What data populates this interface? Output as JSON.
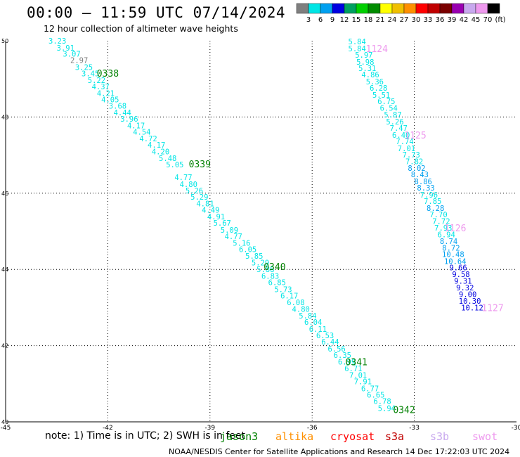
{
  "title": "00:00 – 11:59 UTC 07/14/2024",
  "subtitle": "12 hour collection of altimeter wave heights",
  "colorbar": {
    "unit": "(ft)",
    "bins": [
      {
        "label": "3",
        "color": "#7f7f7f"
      },
      {
        "label": "6",
        "color": "#00e5e5"
      },
      {
        "label": "9",
        "color": "#00a0f0"
      },
      {
        "label": "12",
        "color": "#0000e0"
      },
      {
        "label": "15",
        "color": "#00a060"
      },
      {
        "label": "18",
        "color": "#00d000"
      },
      {
        "label": "21",
        "color": "#008c00"
      },
      {
        "label": "24",
        "color": "#ffff00"
      },
      {
        "label": "27",
        "color": "#f0c000"
      },
      {
        "label": "30",
        "color": "#ff9000"
      },
      {
        "label": "33",
        "color": "#ff0000"
      },
      {
        "label": "36",
        "color": "#c00000"
      },
      {
        "label": "39",
        "color": "#7a0000"
      },
      {
        "label": "42",
        "color": "#9900b0"
      },
      {
        "label": "45",
        "color": "#c8a8ee"
      },
      {
        "label": "70",
        "color": "#ee99ee"
      },
      {
        "label": "",
        "color": "#000000"
      }
    ]
  },
  "footer": {
    "note": "note: 1) Time is in UTC; 2) SWH is in feet",
    "credit": "NOAA/NESDIS Center for Satellite Applications and Research    14 Dec 17:22:03 UTC 2024",
    "satellites": [
      {
        "name": "jason3",
        "color": "#008000"
      },
      {
        "name": "altika",
        "color": "#ff9000"
      },
      {
        "name": "cryosat",
        "color": "#ff0000"
      },
      {
        "name": "s3a",
        "color": "#c00000"
      },
      {
        "name": "s3b",
        "color": "#c8a8ee"
      },
      {
        "name": "swot",
        "color": "#ee99ee"
      }
    ]
  },
  "chart_data": {
    "type": "scatter",
    "xlim": [
      -45,
      -30
    ],
    "ylim": [
      40,
      50
    ],
    "x_ticks": [
      "-45",
      "-42",
      "-39",
      "-36",
      "-33",
      "-30"
    ],
    "y_ticks": [
      "50",
      "48",
      "46",
      "44",
      "42",
      "40"
    ],
    "grid": true,
    "series": [
      {
        "name": "jason3",
        "color_group": "track A",
        "points": [
          {
            "lon": -43.48,
            "lat": 50.0,
            "swh": "3.23",
            "c": "#00e5e5"
          },
          {
            "lon": -43.24,
            "lat": 49.82,
            "swh": "3.91",
            "c": "#00e5e5"
          },
          {
            "lon": -43.06,
            "lat": 49.66,
            "swh": "3.07",
            "c": "#00e5e5"
          },
          {
            "lon": -42.84,
            "lat": 49.49,
            "swh": "2.97",
            "c": "#7f7f7f"
          },
          {
            "lon": -42.7,
            "lat": 49.31,
            "swh": "3.25",
            "c": "#00e5e5"
          },
          {
            "lon": -42.51,
            "lat": 49.14,
            "swh": "3.45",
            "c": "#00e5e5"
          },
          {
            "lon": -42.33,
            "lat": 48.97,
            "swh": "5.22",
            "c": "#00e5e5"
          },
          {
            "lon": -42.21,
            "lat": 48.8,
            "swh": "4.37",
            "c": "#00e5e5"
          },
          {
            "lon": -42.06,
            "lat": 48.63,
            "swh": "4.21",
            "c": "#00e5e5"
          },
          {
            "lon": -41.93,
            "lat": 48.46,
            "swh": "4.05",
            "c": "#00e5e5"
          },
          {
            "lon": -41.71,
            "lat": 48.29,
            "swh": "3.68",
            "c": "#00e5e5"
          },
          {
            "lon": -41.57,
            "lat": 48.12,
            "swh": "4.44",
            "c": "#00e5e5"
          },
          {
            "lon": -41.37,
            "lat": 47.95,
            "swh": "3.96",
            "c": "#00e5e5"
          },
          {
            "lon": -41.17,
            "lat": 47.78,
            "swh": "4.17",
            "c": "#00e5e5"
          },
          {
            "lon": -41.0,
            "lat": 47.61,
            "swh": "4.54",
            "c": "#00e5e5"
          },
          {
            "lon": -40.81,
            "lat": 47.44,
            "swh": "4.72",
            "c": "#00e5e5"
          },
          {
            "lon": -40.57,
            "lat": 47.27,
            "swh": "4.17",
            "c": "#00e5e5"
          },
          {
            "lon": -40.45,
            "lat": 47.09,
            "swh": "4.20",
            "c": "#00e5e5"
          },
          {
            "lon": -40.24,
            "lat": 46.92,
            "swh": "5.48",
            "c": "#00e5e5"
          },
          {
            "lon": -40.03,
            "lat": 46.75,
            "swh": "5.05",
            "c": "#00e5e5"
          },
          {
            "lon": -39.78,
            "lat": 46.42,
            "swh": "4.77",
            "c": "#00e5e5"
          },
          {
            "lon": -39.63,
            "lat": 46.24,
            "swh": "4.80",
            "c": "#00e5e5"
          },
          {
            "lon": -39.46,
            "lat": 46.07,
            "swh": "5.26",
            "c": "#00e5e5"
          },
          {
            "lon": -39.31,
            "lat": 45.9,
            "swh": "5.29",
            "c": "#00e5e5"
          },
          {
            "lon": -39.14,
            "lat": 45.73,
            "swh": "4.81",
            "c": "#00e5e5"
          },
          {
            "lon": -38.98,
            "lat": 45.56,
            "swh": "4.49",
            "c": "#00e5e5"
          },
          {
            "lon": -38.82,
            "lat": 45.39,
            "swh": "4.91",
            "c": "#00e5e5"
          },
          {
            "lon": -38.64,
            "lat": 45.22,
            "swh": "5.67",
            "c": "#00e5e5"
          },
          {
            "lon": -38.43,
            "lat": 45.04,
            "swh": "5.09",
            "c": "#00e5e5"
          },
          {
            "lon": -38.31,
            "lat": 44.87,
            "swh": "4.77",
            "c": "#00e5e5"
          },
          {
            "lon": -38.07,
            "lat": 44.7,
            "swh": "5.16",
            "c": "#00e5e5"
          },
          {
            "lon": -37.89,
            "lat": 44.53,
            "swh": "6.05",
            "c": "#00e5e5"
          },
          {
            "lon": -37.7,
            "lat": 44.35,
            "swh": "5.85",
            "c": "#00e5e5"
          },
          {
            "lon": -37.52,
            "lat": 44.18,
            "swh": "5.29",
            "c": "#00e5e5"
          },
          {
            "lon": -37.37,
            "lat": 44.0,
            "swh": "5.88",
            "c": "#00e5e5"
          },
          {
            "lon": -37.23,
            "lat": 43.83,
            "swh": "6.83",
            "c": "#00e5e5"
          },
          {
            "lon": -37.03,
            "lat": 43.66,
            "swh": "6.85",
            "c": "#00e5e5"
          },
          {
            "lon": -36.85,
            "lat": 43.48,
            "swh": "5.73",
            "c": "#00e5e5"
          },
          {
            "lon": -36.67,
            "lat": 43.31,
            "swh": "6.17",
            "c": "#00e5e5"
          },
          {
            "lon": -36.48,
            "lat": 43.14,
            "swh": "6.08",
            "c": "#00e5e5"
          },
          {
            "lon": -36.33,
            "lat": 42.96,
            "swh": "4.80",
            "c": "#00e5e5"
          },
          {
            "lon": -36.13,
            "lat": 42.79,
            "swh": "5.84",
            "c": "#00e5e5"
          },
          {
            "lon": -35.97,
            "lat": 42.62,
            "swh": "6.04",
            "c": "#00e5e5"
          },
          {
            "lon": -35.83,
            "lat": 42.44,
            "swh": "6.11",
            "c": "#00e5e5"
          },
          {
            "lon": -35.62,
            "lat": 42.27,
            "swh": "6.53",
            "c": "#00e5e5"
          },
          {
            "lon": -35.47,
            "lat": 42.1,
            "swh": "6.44",
            "c": "#00e5e5"
          },
          {
            "lon": -35.28,
            "lat": 41.92,
            "swh": "6.56",
            "c": "#00e5e5"
          },
          {
            "lon": -35.11,
            "lat": 41.75,
            "swh": "6.35",
            "c": "#00e5e5"
          },
          {
            "lon": -34.98,
            "lat": 41.58,
            "swh": "6.99",
            "c": "#00e5e5"
          },
          {
            "lon": -34.79,
            "lat": 41.4,
            "swh": "6.71",
            "c": "#00e5e5"
          },
          {
            "lon": -34.65,
            "lat": 41.23,
            "swh": "7.01",
            "c": "#00e5e5"
          },
          {
            "lon": -34.51,
            "lat": 41.06,
            "swh": "7.91",
            "c": "#00e5e5"
          },
          {
            "lon": -34.3,
            "lat": 40.88,
            "swh": "6.77",
            "c": "#00e5e5"
          },
          {
            "lon": -34.13,
            "lat": 40.71,
            "swh": "6.65",
            "c": "#00e5e5"
          },
          {
            "lon": -33.94,
            "lat": 40.54,
            "swh": "6.78",
            "c": "#00e5e5"
          },
          {
            "lon": -33.81,
            "lat": 40.36,
            "swh": "5.94",
            "c": "#00e5e5"
          }
        ]
      },
      {
        "name": "swot",
        "color_group": "track B",
        "points": [
          {
            "lon": -34.68,
            "lat": 49.98,
            "swh": "5.84",
            "c": "#00e5e5"
          },
          {
            "lon": -34.68,
            "lat": 49.8,
            "swh": "5.84",
            "c": "#00e5e5"
          },
          {
            "lon": -34.48,
            "lat": 49.63,
            "swh": "5.97",
            "c": "#00e5e5"
          },
          {
            "lon": -34.44,
            "lat": 49.45,
            "swh": "5.98",
            "c": "#00e5e5"
          },
          {
            "lon": -34.38,
            "lat": 49.28,
            "swh": "5.31",
            "c": "#00e5e5"
          },
          {
            "lon": -34.29,
            "lat": 49.11,
            "swh": "4.86",
            "c": "#00e5e5"
          },
          {
            "lon": -34.16,
            "lat": 48.93,
            "swh": "5.36",
            "c": "#00e5e5"
          },
          {
            "lon": -34.05,
            "lat": 48.76,
            "swh": "6.28",
            "c": "#00e5e5"
          },
          {
            "lon": -33.97,
            "lat": 48.58,
            "swh": "5.51",
            "c": "#00e5e5"
          },
          {
            "lon": -33.82,
            "lat": 48.41,
            "swh": "6.75",
            "c": "#00e5e5"
          },
          {
            "lon": -33.75,
            "lat": 48.24,
            "swh": "6.54",
            "c": "#00e5e5"
          },
          {
            "lon": -33.63,
            "lat": 48.06,
            "swh": "5.87",
            "c": "#00e5e5"
          },
          {
            "lon": -33.57,
            "lat": 47.88,
            "swh": "5.26",
            "c": "#00e5e5"
          },
          {
            "lon": -33.46,
            "lat": 47.71,
            "swh": "7.47",
            "c": "#00e5e5"
          },
          {
            "lon": -33.39,
            "lat": 47.53,
            "swh": "6.40",
            "c": "#00e5e5"
          },
          {
            "lon": -33.28,
            "lat": 47.36,
            "swh": "7.74",
            "c": "#00e5e5"
          },
          {
            "lon": -33.23,
            "lat": 47.18,
            "swh": "7.01",
            "c": "#00e5e5"
          },
          {
            "lon": -33.09,
            "lat": 47.01,
            "swh": "7.73",
            "c": "#00e5e5"
          },
          {
            "lon": -33.0,
            "lat": 46.84,
            "swh": "7.82",
            "c": "#00e5e5"
          },
          {
            "lon": -32.93,
            "lat": 46.66,
            "swh": "8.02",
            "c": "#00a0f0"
          },
          {
            "lon": -32.84,
            "lat": 46.49,
            "swh": "8.43",
            "c": "#00a0f0"
          },
          {
            "lon": -32.74,
            "lat": 46.31,
            "swh": "8.86",
            "c": "#00a0f0"
          },
          {
            "lon": -32.66,
            "lat": 46.14,
            "swh": "8.33",
            "c": "#00a0f0"
          },
          {
            "lon": -32.57,
            "lat": 45.96,
            "swh": "7.96",
            "c": "#00e5e5"
          },
          {
            "lon": -32.46,
            "lat": 45.79,
            "swh": "7.85",
            "c": "#00e5e5"
          },
          {
            "lon": -32.38,
            "lat": 45.61,
            "swh": "8.28",
            "c": "#00a0f0"
          },
          {
            "lon": -32.29,
            "lat": 45.44,
            "swh": "7.70",
            "c": "#00e5e5"
          },
          {
            "lon": -32.21,
            "lat": 45.27,
            "swh": "7.72",
            "c": "#00e5e5"
          },
          {
            "lon": -32.15,
            "lat": 45.09,
            "swh": "7.93",
            "c": "#00e5e5"
          },
          {
            "lon": -32.06,
            "lat": 44.92,
            "swh": "6.94",
            "c": "#00e5e5"
          },
          {
            "lon": -31.99,
            "lat": 44.74,
            "swh": "8.74",
            "c": "#00a0f0"
          },
          {
            "lon": -31.92,
            "lat": 44.57,
            "swh": "8.72",
            "c": "#00a0f0"
          },
          {
            "lon": -31.86,
            "lat": 44.4,
            "swh": "10.48",
            "c": "#00a0f0"
          },
          {
            "lon": -31.8,
            "lat": 44.22,
            "swh": "10.64",
            "c": "#00a0f0"
          },
          {
            "lon": -31.71,
            "lat": 44.05,
            "swh": "9.66",
            "c": "#0000e0"
          },
          {
            "lon": -31.63,
            "lat": 43.87,
            "swh": "9.58",
            "c": "#0000e0"
          },
          {
            "lon": -31.57,
            "lat": 43.7,
            "swh": "9.31",
            "c": "#0000e0"
          },
          {
            "lon": -31.51,
            "lat": 43.52,
            "swh": "9.32",
            "c": "#0000e0"
          },
          {
            "lon": -31.43,
            "lat": 43.35,
            "swh": "9.00",
            "c": "#0000e0"
          },
          {
            "lon": -31.37,
            "lat": 43.17,
            "swh": "10.30",
            "c": "#0000e0"
          },
          {
            "lon": -31.3,
            "lat": 43.0,
            "swh": "10.12",
            "c": "#0000e0"
          }
        ]
      }
    ],
    "time_labels": [
      {
        "text": "0338",
        "lon": -42.0,
        "lat": 49.15,
        "c": "#008000"
      },
      {
        "text": "0339",
        "lon": -39.3,
        "lat": 46.77,
        "c": "#008000"
      },
      {
        "text": "0340",
        "lon": -37.1,
        "lat": 44.08,
        "c": "#008000"
      },
      {
        "text": "0341",
        "lon": -34.7,
        "lat": 41.58,
        "c": "#008000"
      },
      {
        "text": "0342",
        "lon": -33.3,
        "lat": 40.32,
        "c": "#008000"
      },
      {
        "text": "1124",
        "lon": -34.1,
        "lat": 49.8,
        "c": "#ee99ee"
      },
      {
        "text": "1125",
        "lon": -32.97,
        "lat": 47.53,
        "c": "#ee99ee"
      },
      {
        "text": "1126",
        "lon": -31.8,
        "lat": 45.09,
        "c": "#ee99ee"
      },
      {
        "text": "1127",
        "lon": -30.7,
        "lat": 43.0,
        "c": "#ee99ee"
      }
    ]
  }
}
